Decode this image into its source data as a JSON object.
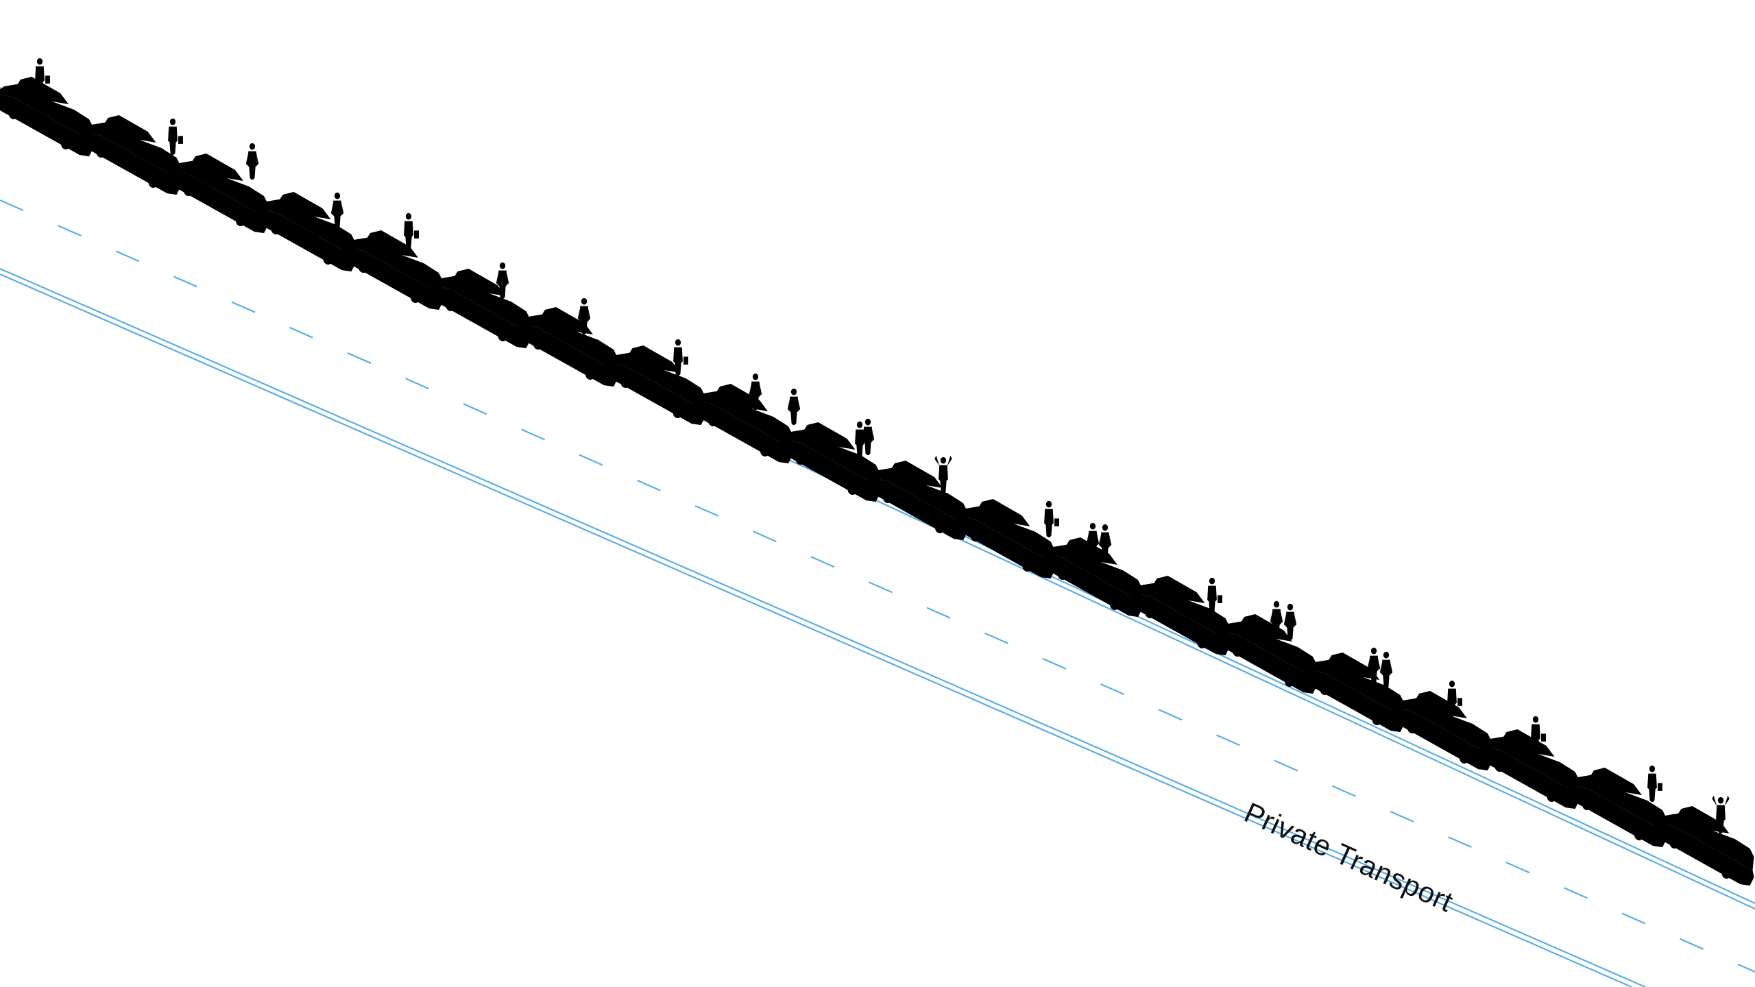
{
  "label": "Private Transport",
  "colors": {
    "road": "#5aaee8",
    "car": "#5aaee8",
    "person": "#ee2a2a",
    "label": "#111111",
    "background": "#ffffff"
  },
  "scene": {
    "car_count": 20,
    "person_count": 25
  }
}
